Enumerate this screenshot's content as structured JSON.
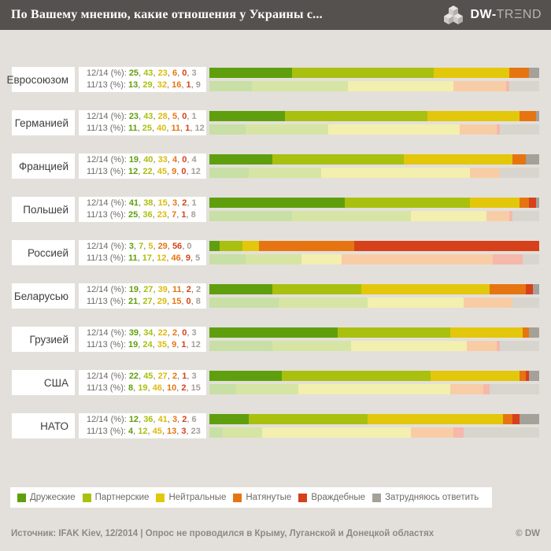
{
  "header": {
    "title": "По Вашему мнению, какие отношения у Украины с...",
    "brand_bold": "DW-",
    "brand_light": "TRΞND"
  },
  "legend": [
    {
      "label": "Дружеские",
      "color": "#5f9f0d"
    },
    {
      "label": "Партнерские",
      "color": "#a9c00f"
    },
    {
      "label": "Нейтральные",
      "color": "#e3c70a"
    },
    {
      "label": "Натянутые",
      "color": "#e67511"
    },
    {
      "label": "Враждебные",
      "color": "#d6401a"
    },
    {
      "label": "Затрудняюсь ответить",
      "color": "#a5a098"
    }
  ],
  "chart_data": {
    "type": "bar",
    "orientation": "horizontal-stacked",
    "unit": "%",
    "xlim": [
      0,
      100
    ],
    "categories": [
      "Дружеские",
      "Партнерские",
      "Нейтральные",
      "Натянутые",
      "Враждебные",
      "Затрудняюсь ответить"
    ],
    "colors_saturated": [
      "#5f9f0d",
      "#a9c00f",
      "#e3c70a",
      "#e67511",
      "#d6401a",
      "#a5a098"
    ],
    "colors_pastel": [
      "#c8dfa5",
      "#d6e5a3",
      "#f3efae",
      "#f8cda6",
      "#f5b8aa",
      "#d8d5ce"
    ],
    "number_colors": [
      "#5f9f0d",
      "#a9c00f",
      "#ddba0a",
      "#e67511",
      "#d6401a",
      "#a5a098"
    ],
    "rows": [
      {
        "country": "Евросоюзом",
        "series": [
          {
            "period": "12/14",
            "label": "12/14 (%):",
            "values": [
              25,
              43,
              23,
              6,
              0,
              3
            ]
          },
          {
            "period": "11/13",
            "label": "11/13 (%):",
            "values": [
              13,
              29,
              32,
              16,
              1,
              9
            ]
          }
        ]
      },
      {
        "country": "Германией",
        "series": [
          {
            "period": "12/14",
            "label": "12/14 (%):",
            "values": [
              23,
              43,
              28,
              5,
              0,
              1
            ]
          },
          {
            "period": "11/13",
            "label": "11/13 (%):",
            "values": [
              11,
              25,
              40,
              11,
              1,
              12
            ]
          }
        ]
      },
      {
        "country": "Францией",
        "series": [
          {
            "period": "12/14",
            "label": "12/14 (%):",
            "values": [
              19,
              40,
              33,
              4,
              0,
              4
            ]
          },
          {
            "period": "11/13",
            "label": "11/13 (%):",
            "values": [
              12,
              22,
              45,
              9,
              0,
              12
            ]
          }
        ]
      },
      {
        "country": "Польшей",
        "series": [
          {
            "period": "12/14",
            "label": "12/14 (%):",
            "values": [
              41,
              38,
              15,
              3,
              2,
              1
            ]
          },
          {
            "period": "11/13",
            "label": "11/13 (%):",
            "values": [
              25,
              36,
              23,
              7,
              1,
              8
            ]
          }
        ]
      },
      {
        "country": "Россией",
        "series": [
          {
            "period": "12/14",
            "label": "12/14 (%):",
            "values": [
              3,
              7,
              5,
              29,
              56,
              0
            ]
          },
          {
            "period": "11/13",
            "label": "11/13 (%):",
            "values": [
              11,
              17,
              12,
              46,
              9,
              5
            ]
          }
        ]
      },
      {
        "country": "Беларусью",
        "series": [
          {
            "period": "12/14",
            "label": "12/14 (%):",
            "values": [
              19,
              27,
              39,
              11,
              2,
              2
            ]
          },
          {
            "period": "11/13",
            "label": "11/13 (%):",
            "values": [
              21,
              27,
              29,
              15,
              0,
              8
            ]
          }
        ]
      },
      {
        "country": "Грузией",
        "series": [
          {
            "period": "12/14",
            "label": "12/14 (%):",
            "values": [
              39,
              34,
              22,
              2,
              0,
              3
            ]
          },
          {
            "period": "11/13",
            "label": "11/13 (%):",
            "values": [
              19,
              24,
              35,
              9,
              1,
              12
            ]
          }
        ]
      },
      {
        "country": "США",
        "series": [
          {
            "period": "12/14",
            "label": "12/14 (%):",
            "values": [
              22,
              45,
              27,
              2,
              1,
              3
            ]
          },
          {
            "period": "11/13",
            "label": "11/13 (%):",
            "values": [
              8,
              19,
              46,
              10,
              2,
              15
            ]
          }
        ]
      },
      {
        "country": "НАТО",
        "series": [
          {
            "period": "12/14",
            "label": "12/14 (%):",
            "values": [
              12,
              36,
              41,
              3,
              2,
              6
            ]
          },
          {
            "period": "11/13",
            "label": "11/13 (%):",
            "values": [
              4,
              12,
              45,
              13,
              3,
              23
            ]
          }
        ]
      }
    ]
  },
  "footer": {
    "source": "Источник: IFAK Kiev, 12/2014 | Опрос не проводился в Крыму, Луганской и Донецкой областях",
    "copyright": "© DW"
  }
}
